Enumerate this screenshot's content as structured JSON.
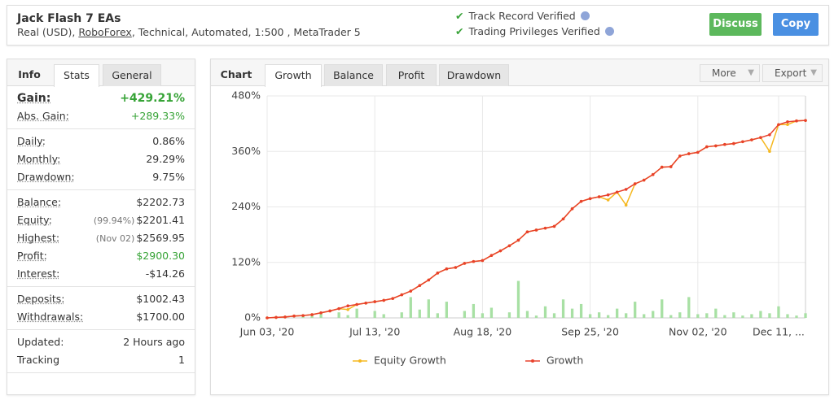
{
  "header": {
    "title": "Jack Flash 7 EAs",
    "subtitle_prefix": "Real (USD), ",
    "broker": "RoboForex",
    "subtitle_suffix": ", Technical, Automated, 1:500 , MetaTrader 5",
    "verified": [
      "Track Record Verified",
      "Trading Privileges Verified"
    ],
    "buttons": [
      "Discuss",
      "Copy"
    ]
  },
  "info": {
    "tabs": [
      "Info",
      "Stats",
      "General"
    ],
    "groups": [
      [
        {
          "label": "Gain:",
          "value": "+429.21%"
        },
        {
          "label": "Abs. Gain:",
          "value": "+289.33%"
        }
      ],
      [
        {
          "label": "Daily:",
          "value": "0.86%"
        },
        {
          "label": "Monthly:",
          "value": "29.29%"
        },
        {
          "label": "Drawdown:",
          "value": "9.75%"
        }
      ],
      [
        {
          "label": "Balance:",
          "value": "$2202.73"
        },
        {
          "label": "Equity:",
          "note": "(99.94%)",
          "value": "$2201.41"
        },
        {
          "label": "Highest:",
          "note": "(Nov 02)",
          "value": "$2569.95"
        },
        {
          "label": "Profit:",
          "value": "$2900.30"
        },
        {
          "label": "Interest:",
          "value": "-$14.26"
        }
      ],
      [
        {
          "label": "Deposits:",
          "value": "$1002.43"
        },
        {
          "label": "Withdrawals:",
          "value": "$1700.00"
        }
      ],
      [
        {
          "label": "Updated:",
          "value": "2 Hours ago"
        },
        {
          "label": "Tracking",
          "value": "1"
        }
      ]
    ]
  },
  "chart_panel": {
    "tabs": [
      "Chart",
      "Growth",
      "Balance",
      "Profit",
      "Drawdown"
    ],
    "menus": [
      "More",
      "Export"
    ]
  },
  "chart_data": {
    "type": "line",
    "categories": [
      "Jun 03, '20",
      null,
      null,
      null,
      null,
      null,
      null,
      null,
      null,
      null,
      null,
      null,
      "Jul 13, '20",
      null,
      null,
      null,
      null,
      null,
      null,
      null,
      null,
      null,
      null,
      null,
      "Aug 18, '20",
      null,
      null,
      null,
      null,
      null,
      null,
      null,
      null,
      null,
      null,
      null,
      "Sep 25, '20",
      null,
      null,
      null,
      null,
      null,
      null,
      null,
      null,
      null,
      null,
      null,
      "Nov 02, '20",
      null,
      null,
      null,
      null,
      null,
      null,
      null,
      null,
      "Dec 11, ...",
      null,
      null,
      null
    ],
    "series": [
      {
        "name": "Equity Growth",
        "color": "#f5b820",
        "values": [
          0,
          1,
          2,
          4,
          5,
          7,
          11,
          15,
          20,
          18,
          29,
          32,
          35,
          38,
          42,
          50,
          58,
          70,
          82,
          97,
          106,
          109,
          118,
          122,
          124,
          135,
          145,
          156,
          168,
          186,
          190,
          194,
          198,
          214,
          236,
          252,
          258,
          262,
          255,
          272,
          244,
          290,
          298,
          310,
          326,
          327,
          350,
          355,
          358,
          370,
          372,
          375,
          377,
          381,
          385,
          390,
          360,
          418,
          418,
          426,
          427
        ]
      },
      {
        "name": "Growth",
        "color": "#e8412c",
        "values": [
          0,
          1,
          2,
          4,
          5,
          7,
          11,
          15,
          20,
          26,
          29,
          32,
          35,
          38,
          42,
          50,
          58,
          70,
          82,
          97,
          106,
          109,
          118,
          122,
          124,
          135,
          145,
          156,
          168,
          186,
          190,
          194,
          198,
          214,
          236,
          252,
          258,
          262,
          266,
          272,
          278,
          290,
          298,
          310,
          326,
          327,
          350,
          355,
          358,
          370,
          372,
          375,
          377,
          381,
          385,
          390,
          396,
          418,
          424,
          426,
          427
        ]
      }
    ],
    "bars": {
      "color": "#a8e0a4",
      "values": [
        0,
        0,
        2,
        0,
        5,
        8,
        10,
        0,
        12,
        6,
        20,
        0,
        15,
        8,
        0,
        12,
        45,
        18,
        40,
        10,
        35,
        0,
        15,
        30,
        10,
        22,
        0,
        12,
        80,
        15,
        5,
        25,
        10,
        40,
        20,
        30,
        8,
        12,
        6,
        20,
        10,
        35,
        8,
        15,
        40,
        6,
        12,
        45,
        8,
        10,
        20,
        6,
        12,
        5,
        8,
        15,
        10,
        25,
        8,
        5,
        10
      ]
    },
    "ylim": [
      0,
      480
    ],
    "yticks": [
      {
        "value": 0,
        "label": "0%"
      },
      {
        "value": 120,
        "label": "120%"
      },
      {
        "value": 240,
        "label": "240%"
      },
      {
        "value": 360,
        "label": "360%"
      },
      {
        "value": 480,
        "label": "480%"
      }
    ],
    "grid": true
  }
}
